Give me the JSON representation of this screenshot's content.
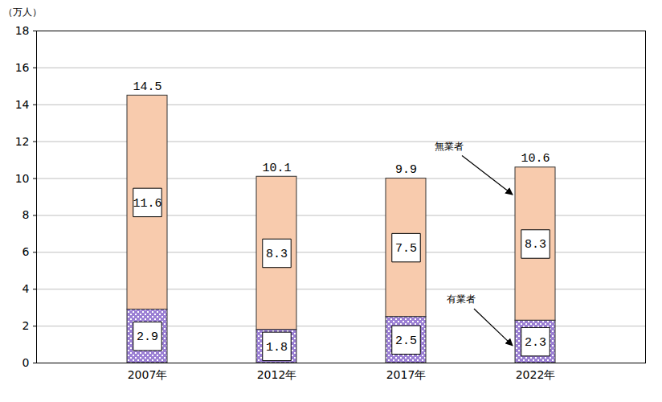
{
  "chart_data": {
    "type": "bar",
    "stacked": true,
    "ylabel": "（万人）",
    "categories": [
      "2007年",
      "2012年",
      "2017年",
      "2022年"
    ],
    "series": [
      {
        "name": "有業者",
        "color": "#9b7fd4",
        "values": [
          2.9,
          1.8,
          2.5,
          2.3
        ]
      },
      {
        "name": "無業者",
        "color": "#f8cbad",
        "values": [
          11.6,
          8.3,
          7.5,
          8.3
        ]
      }
    ],
    "totals": [
      14.5,
      10.1,
      9.9,
      10.6
    ],
    "ylim": [
      0,
      18
    ],
    "yticks": [
      0,
      2,
      4,
      6,
      8,
      10,
      12,
      14,
      16,
      18
    ],
    "grid": true,
    "data_labels": true
  }
}
